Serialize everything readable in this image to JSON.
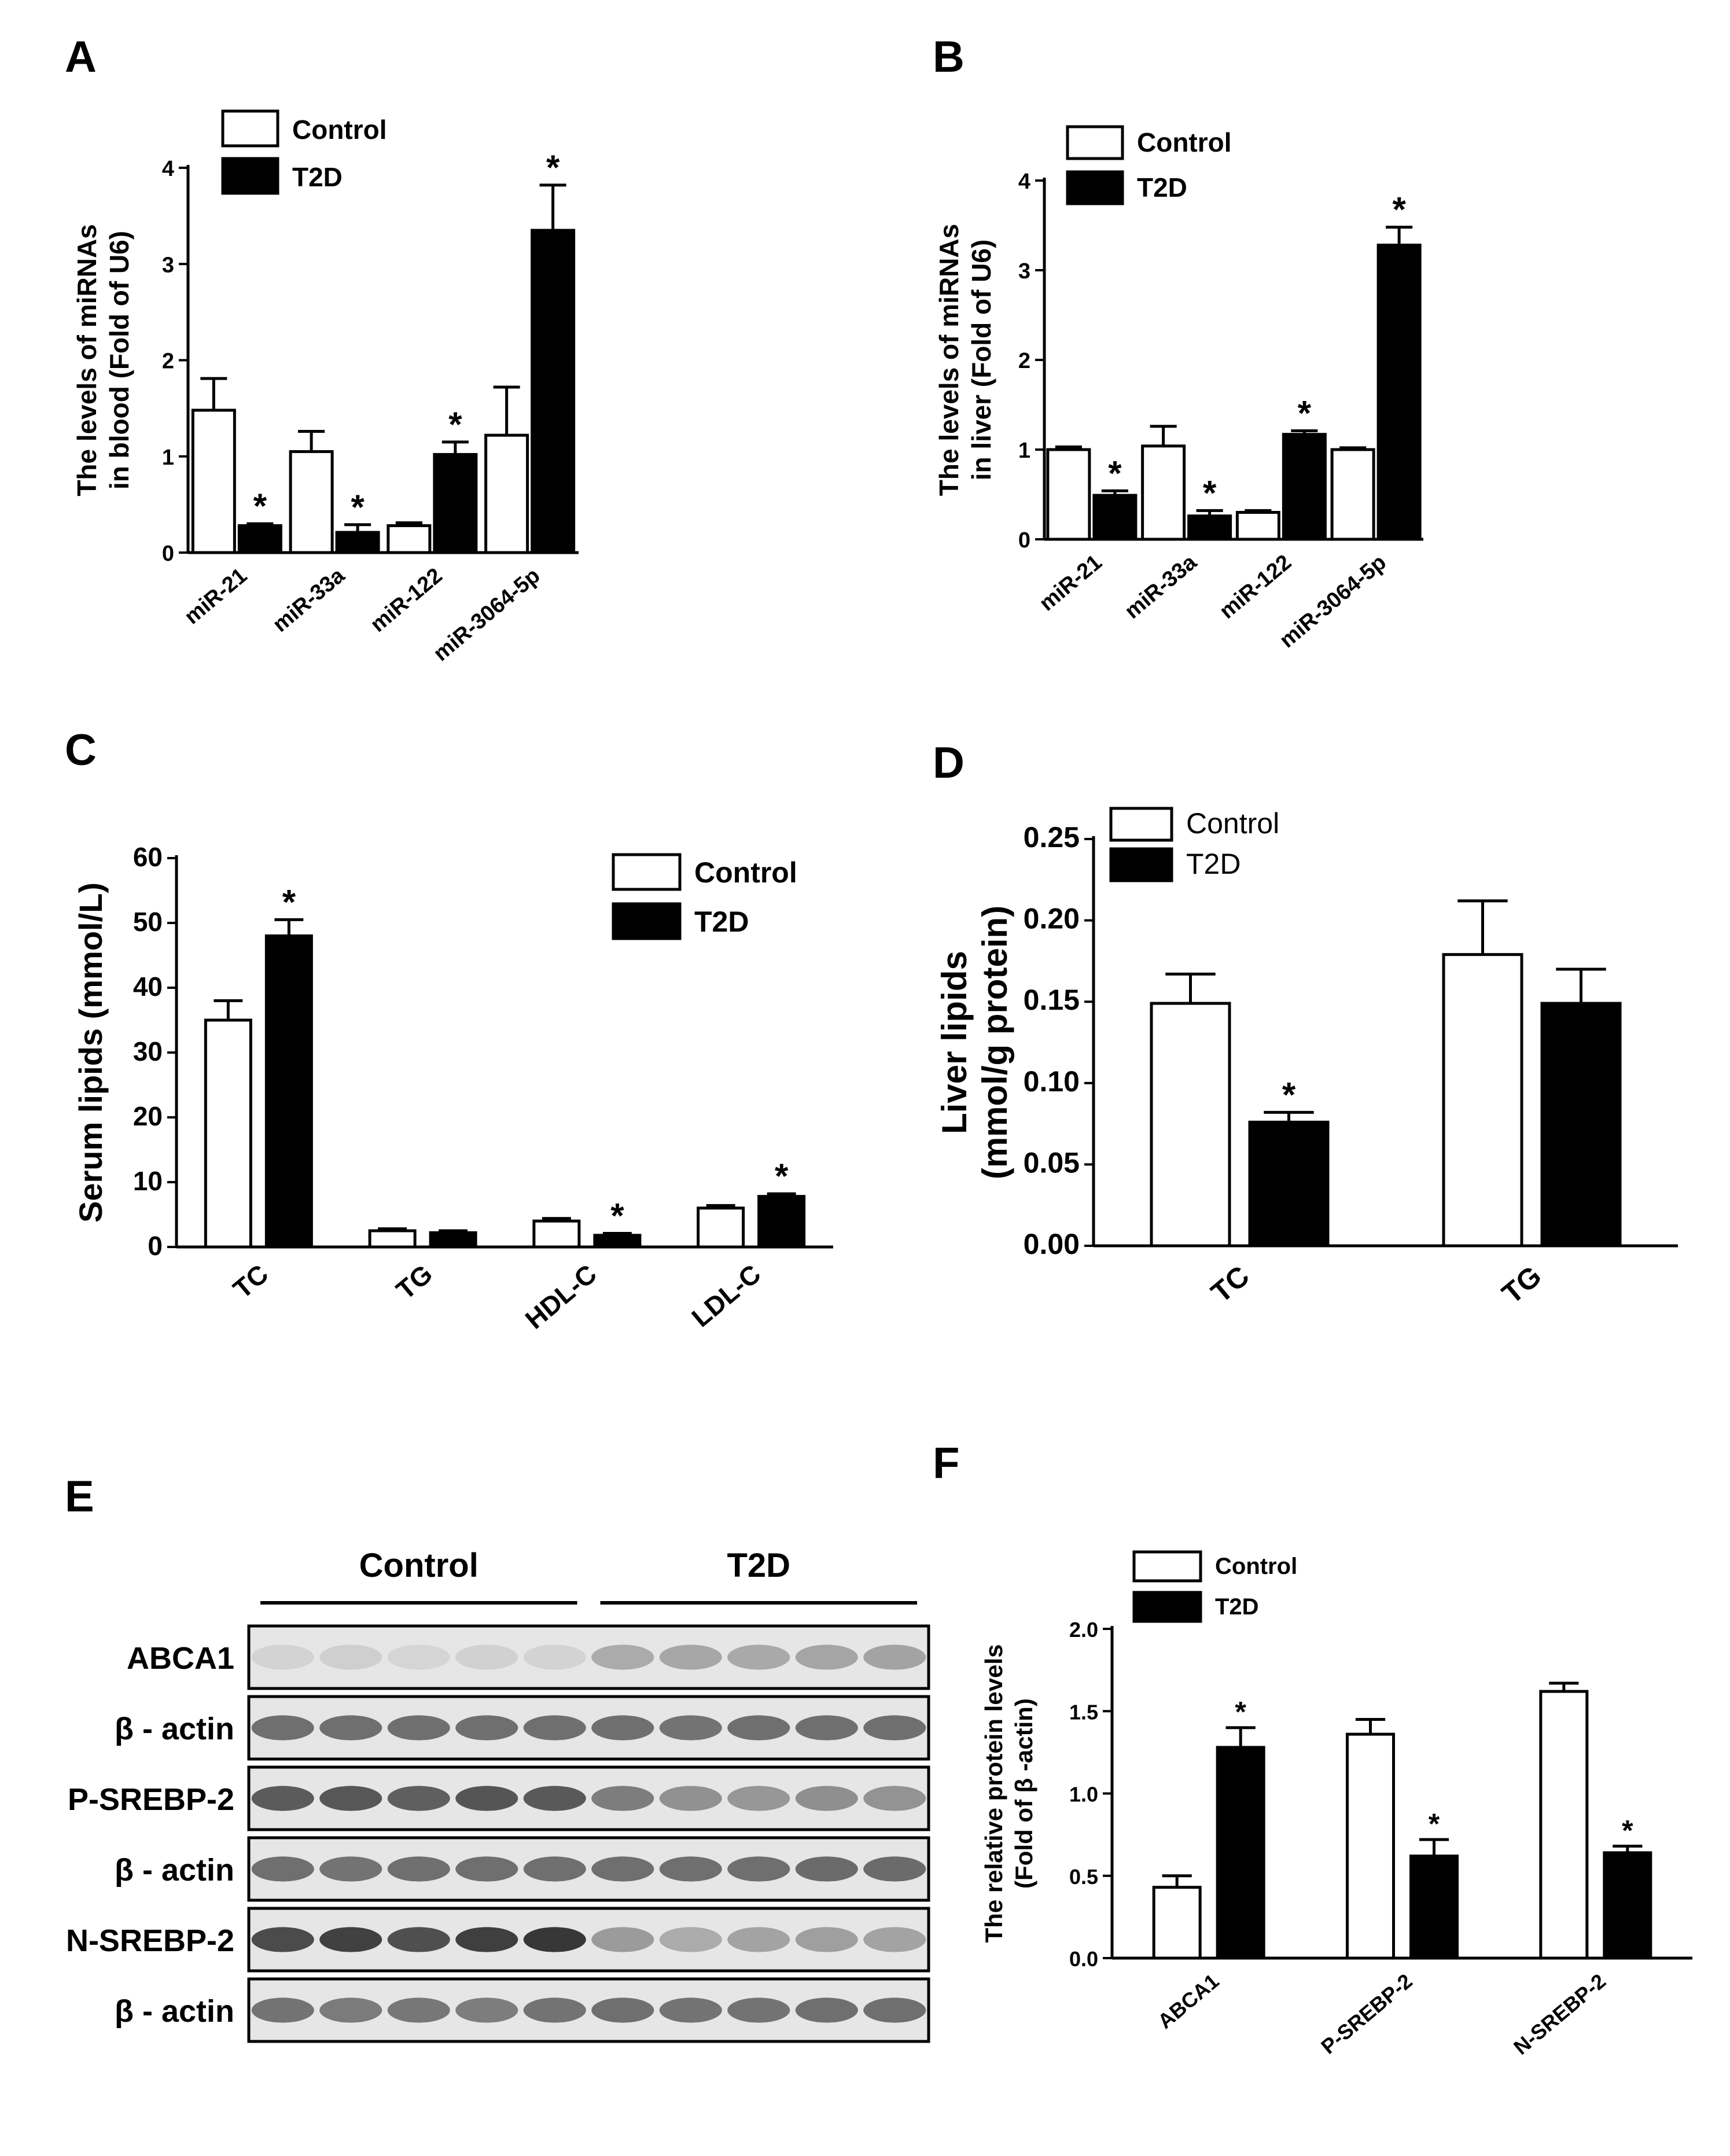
{
  "figure": {
    "panels": [
      "A",
      "B",
      "C",
      "D",
      "E",
      "F"
    ]
  },
  "colors": {
    "control": "#ffffff",
    "t2d": "#000000",
    "axis": "#000000"
  },
  "chart_data": [
    {
      "panel": "A",
      "type": "bar",
      "ylabel": [
        "The levels of miRNAs",
        "in blood (Fold of U6)"
      ],
      "categories": [
        "miR-21",
        "miR-33a",
        "miR-122",
        "miR-3064-5p"
      ],
      "yticks": [
        "0",
        "1",
        "2",
        "3",
        "4"
      ],
      "ylim": [
        0,
        4
      ],
      "series": [
        {
          "name": "Control",
          "values": [
            1.48,
            1.05,
            0.28,
            1.22
          ],
          "errors": [
            0.33,
            0.21,
            0.03,
            0.5
          ]
        },
        {
          "name": "T2D",
          "values": [
            0.28,
            0.21,
            1.02,
            3.35
          ],
          "errors": [
            0.02,
            0.08,
            0.13,
            0.47
          ]
        }
      ],
      "significance": [
        "*",
        "*",
        "*",
        "*"
      ],
      "legend": "top-left",
      "tick_style": "bold-rotated"
    },
    {
      "panel": "B",
      "type": "bar",
      "ylabel": [
        "The levels of miRNAs",
        "in liver (Fold of U6)"
      ],
      "categories": [
        "miR-21",
        "miR-33a",
        "miR-122",
        "miR-3064-5p"
      ],
      "yticks": [
        "0",
        "1",
        "2",
        "3",
        "4"
      ],
      "ylim": [
        0,
        4
      ],
      "series": [
        {
          "name": "Control",
          "values": [
            1.0,
            1.04,
            0.3,
            1.0
          ],
          "errors": [
            0.03,
            0.22,
            0.02,
            0.02
          ]
        },
        {
          "name": "T2D",
          "values": [
            0.49,
            0.26,
            1.17,
            3.28
          ],
          "errors": [
            0.05,
            0.06,
            0.04,
            0.2
          ]
        }
      ],
      "significance": [
        "*",
        "*",
        "*",
        "*"
      ],
      "legend": "top-left",
      "tick_style": "bold-rotated"
    },
    {
      "panel": "C",
      "type": "bar",
      "ylabel": [
        "Serum lipids (mmol/L)"
      ],
      "categories": [
        "TC",
        "TG",
        "HDL-C",
        "LDL-C"
      ],
      "yticks": [
        "0",
        "10",
        "20",
        "30",
        "40",
        "50",
        "60"
      ],
      "ylim": [
        0,
        60
      ],
      "series": [
        {
          "name": "Control",
          "values": [
            35,
            2.5,
            4,
            6
          ],
          "errors": [
            3,
            0.3,
            0.4,
            0.4
          ]
        },
        {
          "name": "T2D",
          "values": [
            48,
            2.2,
            1.8,
            7.8
          ],
          "errors": [
            2.5,
            0.3,
            0.3,
            0.4
          ]
        }
      ],
      "significance": [
        "*",
        "",
        "*",
        "*"
      ],
      "legend": "top-right",
      "tick_style": "bold-rotated-large"
    },
    {
      "panel": "D",
      "type": "bar",
      "ylabel": [
        "Liver lipids",
        "(mmol/g protein)"
      ],
      "categories": [
        "TC",
        "TG"
      ],
      "yticks": [
        "0.00",
        "0.05",
        "0.10",
        "0.15",
        "0.20",
        "0.25"
      ],
      "ylim": [
        0,
        0.25
      ],
      "series": [
        {
          "name": "Control",
          "values": [
            0.149,
            0.179
          ],
          "errors": [
            0.018,
            0.033
          ]
        },
        {
          "name": "T2D",
          "values": [
            0.076,
            0.149
          ],
          "errors": [
            0.006,
            0.021
          ]
        }
      ],
      "significance": [
        "*",
        ""
      ],
      "legend": "top-left",
      "tick_style": "bold-rotated-large"
    },
    {
      "panel": "F",
      "type": "bar",
      "ylabel": [
        "The relative protein levels",
        "(Fold of β -actin)"
      ],
      "categories": [
        "ABCA1",
        "P-SREBP-2",
        "N-SREBP-2"
      ],
      "yticks": [
        "0.0",
        "0.5",
        "1.0",
        "1.5",
        "2.0"
      ],
      "ylim": [
        0,
        2
      ],
      "series": [
        {
          "name": "Control",
          "values": [
            0.43,
            1.36,
            1.62
          ],
          "errors": [
            0.07,
            0.09,
            0.05
          ]
        },
        {
          "name": "T2D",
          "values": [
            1.28,
            0.62,
            0.64
          ],
          "errors": [
            0.12,
            0.1,
            0.04
          ]
        }
      ],
      "significance": [
        "*",
        "*",
        "*"
      ],
      "legend": "top-left",
      "tick_style": "bold-rotated"
    }
  ],
  "blot": {
    "panel": "E",
    "groups": [
      "Control",
      "T2D"
    ],
    "lanes_per_group": 5,
    "rows": [
      {
        "label": "ABCA1",
        "intensity": [
          0.12,
          0.14,
          0.11,
          0.13,
          0.12,
          0.32,
          0.34,
          0.33,
          0.35,
          0.36
        ]
      },
      {
        "label": "β - actin",
        "intensity": [
          0.62,
          0.62,
          0.62,
          0.62,
          0.62,
          0.62,
          0.6,
          0.62,
          0.62,
          0.62
        ]
      },
      {
        "label": "P-SREBP-2",
        "intensity": [
          0.72,
          0.74,
          0.7,
          0.75,
          0.73,
          0.55,
          0.45,
          0.42,
          0.46,
          0.44
        ]
      },
      {
        "label": "β - actin",
        "intensity": [
          0.62,
          0.6,
          0.62,
          0.62,
          0.62,
          0.62,
          0.62,
          0.62,
          0.64,
          0.64
        ]
      },
      {
        "label": "N-SREBP-2",
        "intensity": [
          0.8,
          0.85,
          0.78,
          0.86,
          0.9,
          0.4,
          0.32,
          0.36,
          0.38,
          0.36
        ]
      },
      {
        "label": "β - actin",
        "intensity": [
          0.6,
          0.56,
          0.58,
          0.55,
          0.6,
          0.62,
          0.6,
          0.6,
          0.62,
          0.62
        ]
      }
    ]
  }
}
